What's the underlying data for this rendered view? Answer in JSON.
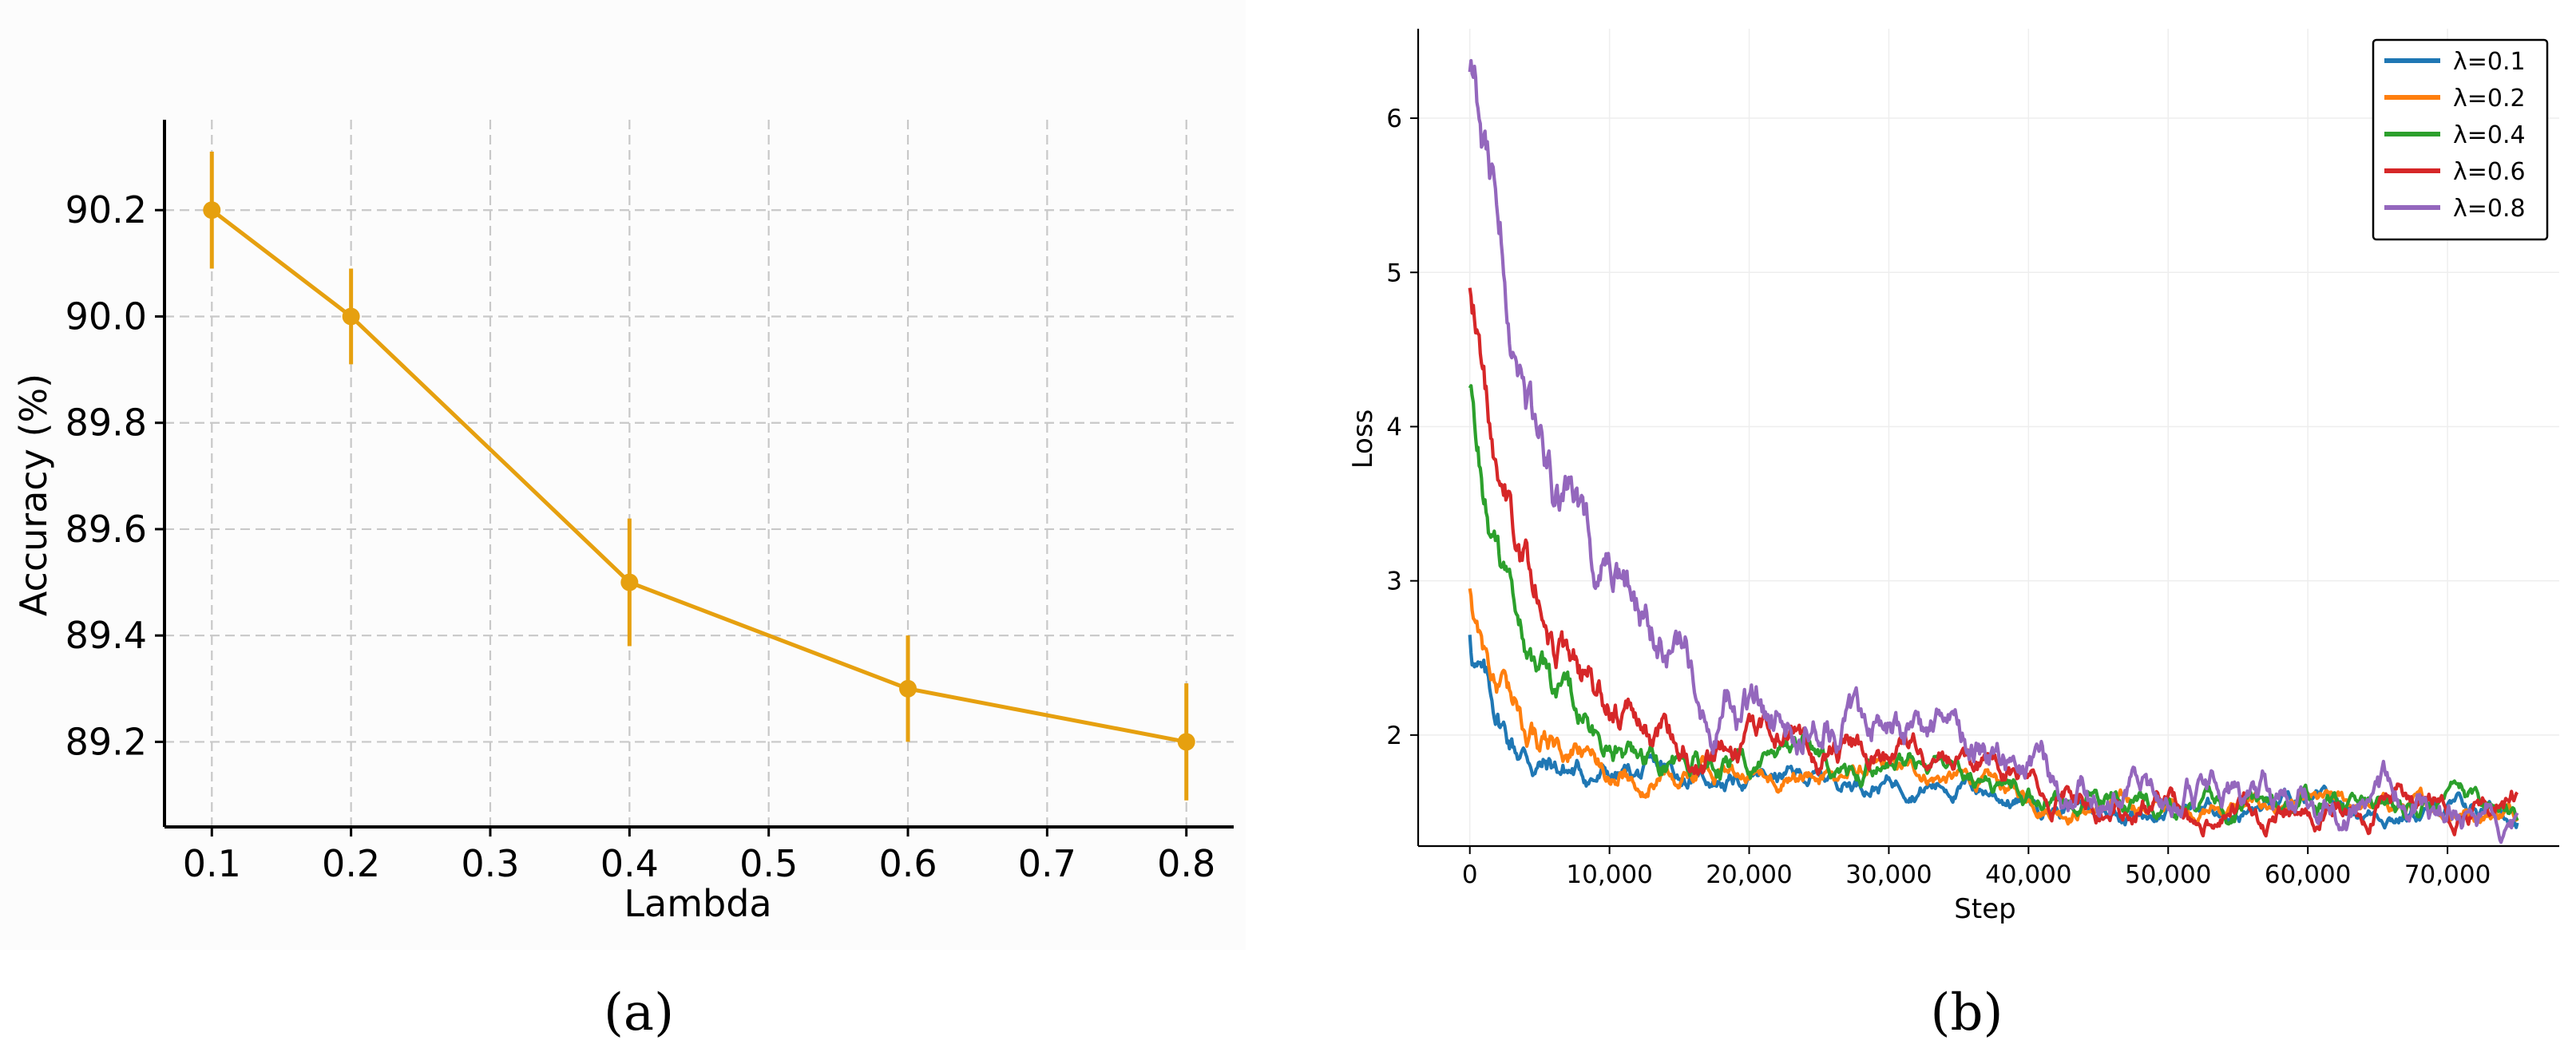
{
  "chart_data": [
    {
      "type": "line",
      "caption": "(a)",
      "xlabel": "Lambda",
      "ylabel": "Accuracy (%)",
      "x": [
        0.1,
        0.2,
        0.4,
        0.6,
        0.8
      ],
      "xticks": [
        "0.1",
        "0.2",
        "0.3",
        "0.4",
        "0.5",
        "0.6",
        "0.7",
        "0.8"
      ],
      "xtick_values": [
        0.1,
        0.2,
        0.3,
        0.4,
        0.5,
        0.6,
        0.7,
        0.8
      ],
      "yticks": [
        "89.2",
        "89.4",
        "89.6",
        "89.8",
        "90.0",
        "90.2"
      ],
      "ytick_values": [
        89.2,
        89.4,
        89.6,
        89.8,
        90.0,
        90.2
      ],
      "series": [
        {
          "values": [
            90.2,
            90.0,
            89.5,
            89.3,
            89.2
          ],
          "error": [
            0.11,
            0.09,
            0.12,
            0.1,
            0.11
          ],
          "color": "#E6A00F"
        }
      ],
      "xlim": [
        0.066,
        0.834
      ],
      "ylim": [
        89.04,
        90.37
      ],
      "grid": true,
      "grid_style": "dashed"
    },
    {
      "type": "line",
      "caption": "(b)",
      "xlabel": "Step",
      "ylabel": "Loss",
      "xticks": [
        "0",
        "10,000",
        "20,000",
        "30,000",
        "40,000",
        "50,000",
        "60,000",
        "70,000"
      ],
      "xtick_values": [
        0,
        10000,
        20000,
        30000,
        40000,
        50000,
        60000,
        70000
      ],
      "yticks": [
        "2",
        "3",
        "4",
        "5",
        "6"
      ],
      "ytick_values": [
        2,
        3,
        4,
        5,
        6
      ],
      "xlim": [
        -3700,
        78000
      ],
      "ylim": [
        1.28,
        6.58
      ],
      "grid": true,
      "legend_position": "top-right",
      "series": [
        {
          "name": "λ=0.1",
          "color": "#1F77B4",
          "start": 2.65,
          "plateau": 1.73,
          "final": 1.51,
          "tau": 2300,
          "noise": 0.025
        },
        {
          "name": "λ=0.2",
          "color": "#FF7F0E",
          "start": 2.95,
          "plateau": 1.77,
          "final": 1.52,
          "tau": 2700,
          "noise": 0.025
        },
        {
          "name": "λ=0.4",
          "color": "#2CA02C",
          "start": 4.25,
          "plateau": 1.84,
          "final": 1.54,
          "tau": 3300,
          "noise": 0.03
        },
        {
          "name": "λ=0.6",
          "color": "#D62728",
          "start": 4.9,
          "plateau": 1.92,
          "final": 1.55,
          "tau": 4600,
          "noise": 0.035
        },
        {
          "name": "λ=0.8",
          "color": "#9467BD",
          "start": 6.3,
          "plateau": 2.02,
          "final": 1.58,
          "tau": 6500,
          "noise": 0.045
        }
      ]
    }
  ]
}
